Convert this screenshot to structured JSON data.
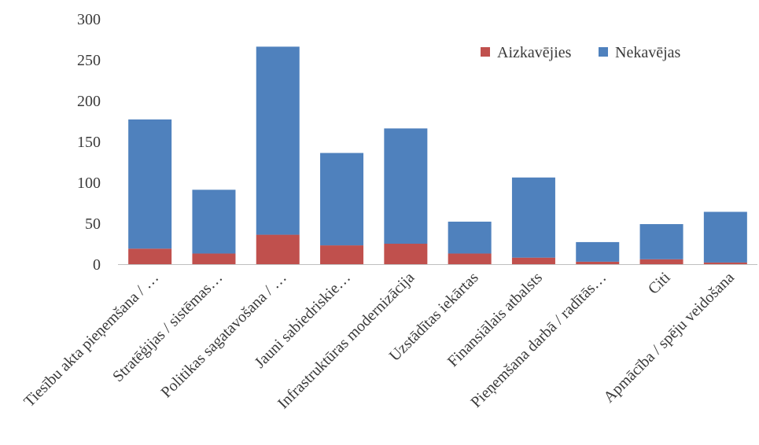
{
  "chart_data": {
    "type": "bar",
    "stacked": true,
    "categories": [
      "Tiesību akta pieņemšana / …",
      "Stratēģijas / sistēmas…",
      "Politikas sagatavošana / …",
      "Jauni sabiedriskie…",
      "Infrastruktūras modernizācija",
      "Uzstādītas iekārtas",
      "Finansiālais atbalsts",
      "Pieņemšana darbā / radītās…",
      "Citi",
      "Apmācība / spēju veidošana"
    ],
    "series": [
      {
        "name": "Aizkavējies",
        "color": "#C0504D",
        "values": [
          19,
          13,
          36,
          23,
          25,
          13,
          8,
          3,
          6,
          2
        ]
      },
      {
        "name": "Nekavējas",
        "color": "#4F81BD",
        "values": [
          158,
          78,
          230,
          113,
          141,
          39,
          98,
          24,
          43,
          62
        ]
      }
    ],
    "ylim": [
      0,
      300
    ],
    "yticks": [
      "0",
      "50",
      "100",
      "150",
      "200",
      "250",
      "300"
    ],
    "grid": false,
    "legend_position": "top-right"
  }
}
